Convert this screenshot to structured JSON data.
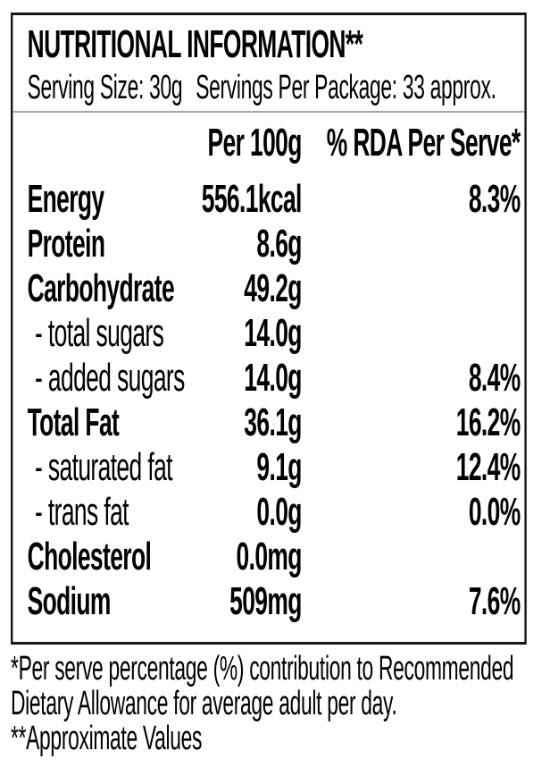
{
  "label": {
    "title": "NUTRITIONAL INFORMATION**",
    "serving": {
      "size": "Serving Size: 30g",
      "per_package": "Servings Per Package: 33 approx."
    },
    "columns": {
      "per_100g": "Per 100g",
      "rda_per_serve": "% RDA Per Serve*"
    },
    "rows": [
      {
        "name": "Energy",
        "per_100g": "556.1kcal",
        "rda": "8.3%"
      },
      {
        "name": "Protein",
        "per_100g": "8.6g",
        "rda": ""
      },
      {
        "name": "Carbohydrate",
        "per_100g": "49.2g",
        "rda": ""
      },
      {
        "name": "- total sugars",
        "per_100g": "14.0g",
        "rda": ""
      },
      {
        "name": "- added sugars",
        "per_100g": "14.0g",
        "rda": "8.4%"
      },
      {
        "name": "Total Fat",
        "per_100g": "36.1g",
        "rda": "16.2%"
      },
      {
        "name": "- saturated fat",
        "per_100g": "9.1g",
        "rda": "12.4%"
      },
      {
        "name": "- trans fat",
        "per_100g": "0.0g",
        "rda": "0.0%"
      },
      {
        "name": "Cholesterol",
        "per_100g": "0.0mg",
        "rda": ""
      },
      {
        "name": "Sodium",
        "per_100g": "509mg",
        "rda": "7.6%"
      }
    ],
    "footnotes": {
      "lines": [
        "*Per serve percentage (%) contribution to Recommended",
        "Dietary Allowance for average adult per day.",
        "**Approximate Values"
      ]
    }
  },
  "colors": {
    "background": "#ffffff",
    "text": "#000000",
    "box_border": "#161616",
    "divider": "#a8a8a8"
  }
}
